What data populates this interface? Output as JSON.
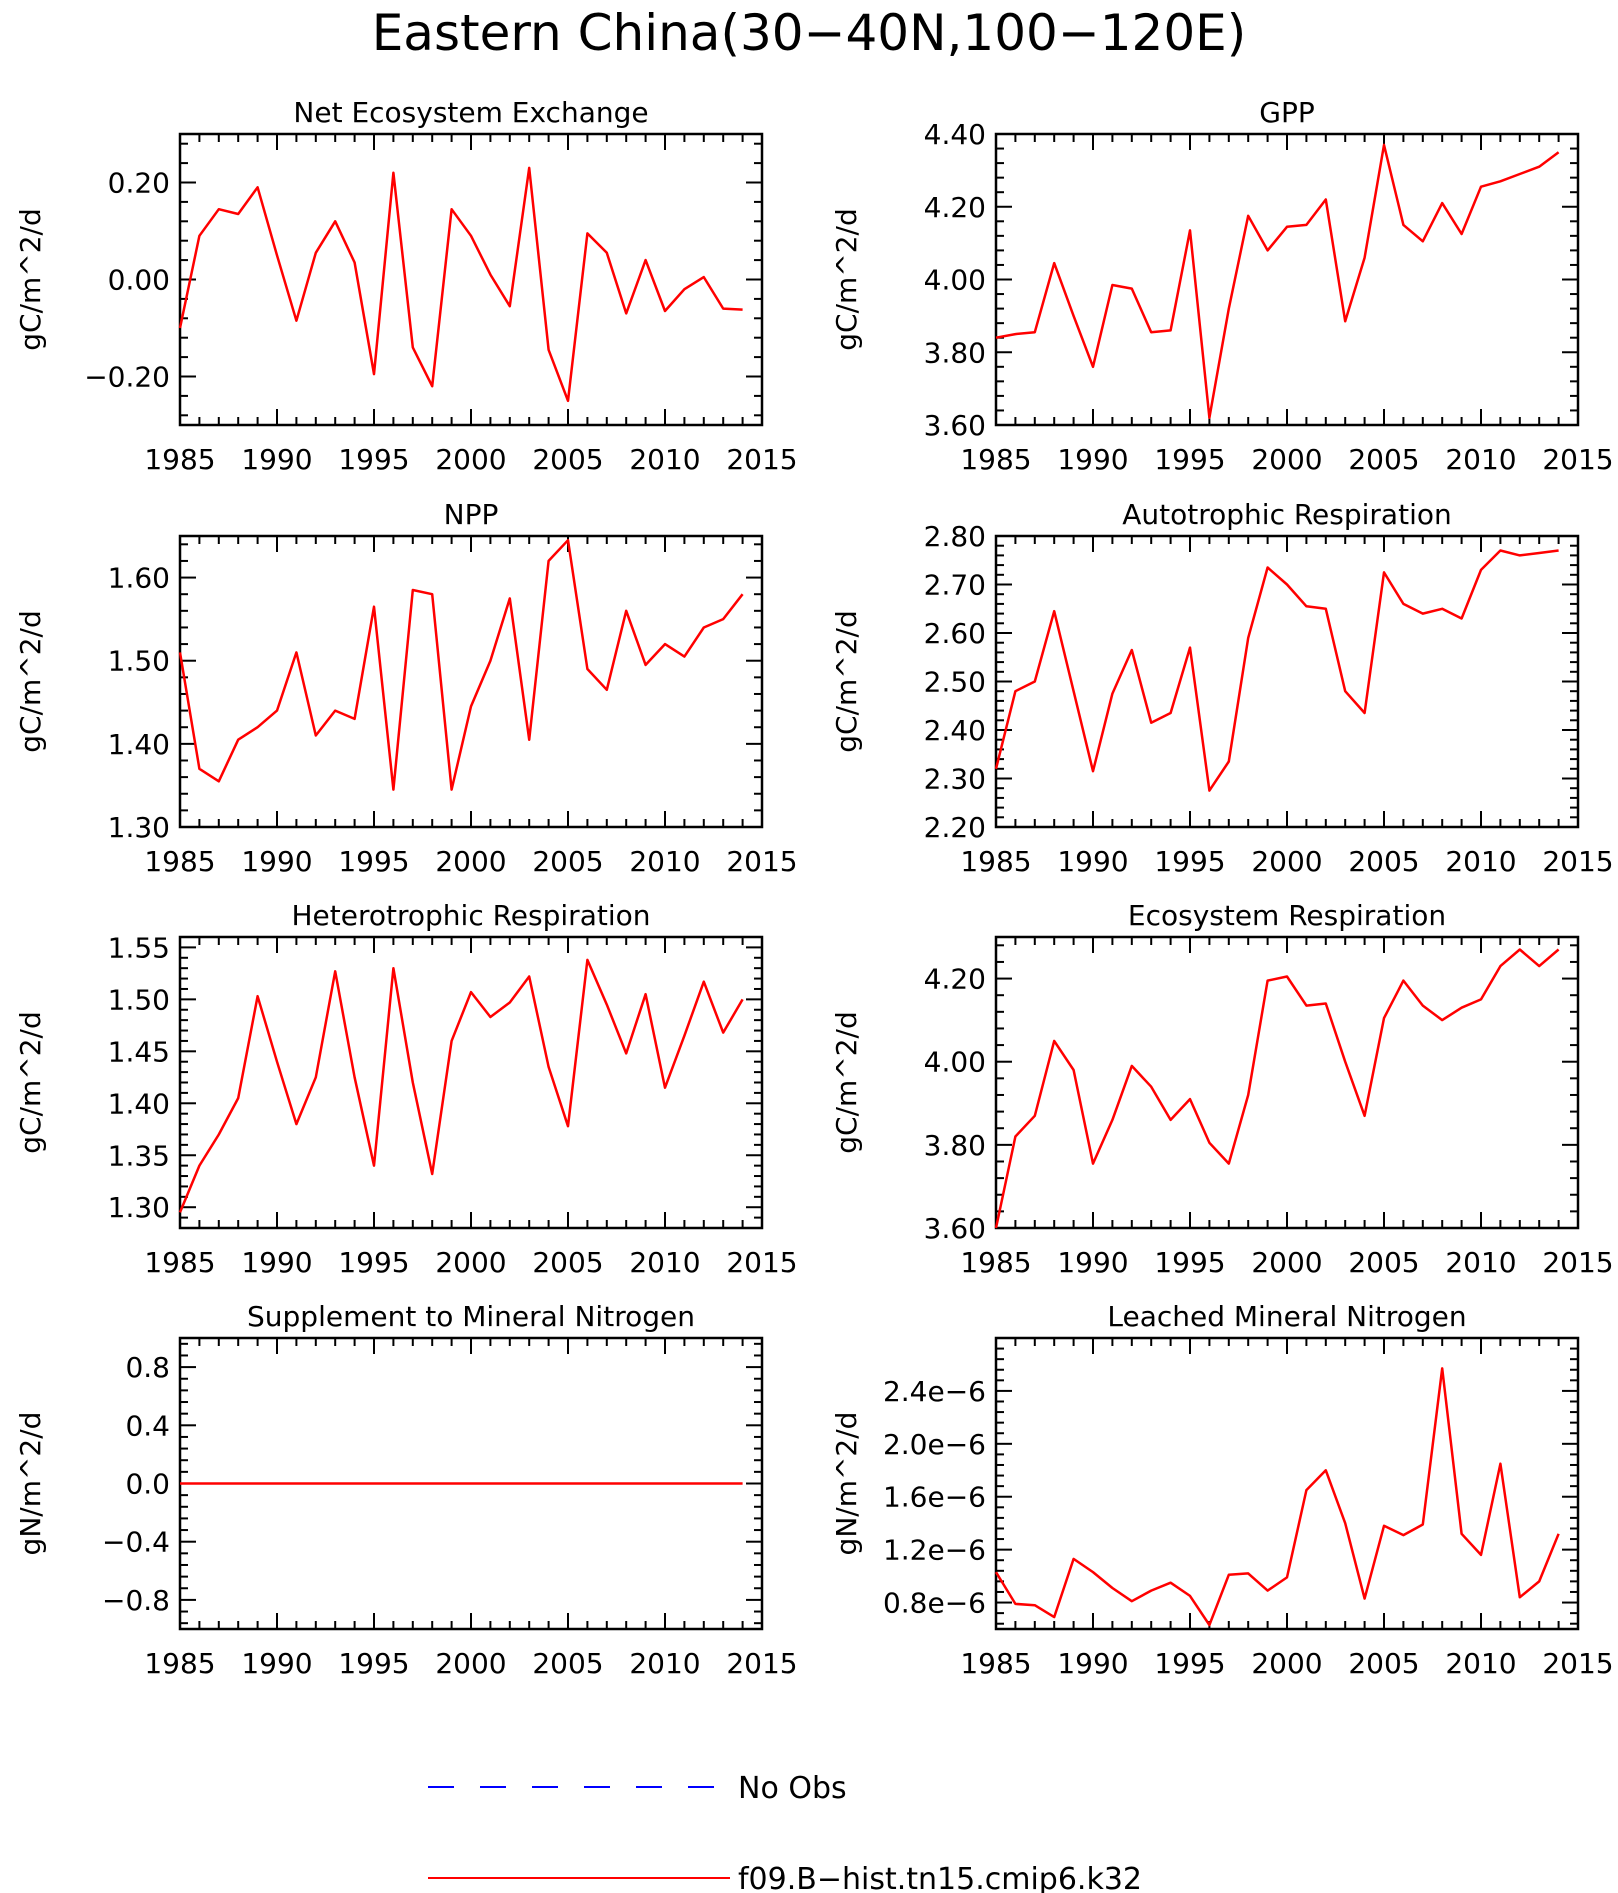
{
  "title": "Eastern China(30-40N,100-120E)",
  "legend": {
    "items": [
      {
        "label": "No Obs",
        "color": "#0000ff",
        "dash": "dashed"
      },
      {
        "label": "f09.B-hist.tn15.cmip6.k32",
        "color": "#ff0000",
        "dash": "solid"
      }
    ]
  },
  "colors": {
    "series": "#ff0000",
    "obs": "#0000ff",
    "axis": "#000000"
  },
  "chart_data": [
    {
      "type": "line",
      "title": "Net Ecosystem Exchange",
      "ylabel": "gC/m^2/d",
      "xlim": [
        1985,
        2015
      ],
      "ylim": [
        -0.3,
        0.3
      ],
      "xticks": [
        "1985",
        "1990",
        "1995",
        "2000",
        "2005",
        "2010",
        "2015"
      ],
      "yticks": [
        "-0.20",
        "0.00",
        "0.20"
      ],
      "ytick_values": [
        -0.2,
        0,
        0.2
      ],
      "x_start": 1985,
      "series": [
        {
          "values": [
            -0.1,
            0.09,
            0.145,
            0.135,
            0.19,
            0.05,
            -0.085,
            0.055,
            0.12,
            0.035,
            -0.195,
            0.22,
            -0.14,
            -0.22,
            0.145,
            0.09,
            0.01,
            -0.055,
            0.23,
            -0.145,
            -0.25,
            0.095,
            0.055,
            -0.07,
            0.04,
            -0.065,
            -0.02,
            0.005,
            -0.06,
            -0.062
          ]
        }
      ]
    },
    {
      "type": "line",
      "title": "GPP",
      "ylabel": "gC/m^2/d",
      "xlim": [
        1985,
        2015
      ],
      "ylim": [
        3.6,
        4.4
      ],
      "xticks": [
        "1985",
        "1990",
        "1995",
        "2000",
        "2005",
        "2010",
        "2015"
      ],
      "yticks": [
        "3.60",
        "3.80",
        "4.00",
        "4.20",
        "4.40"
      ],
      "ytick_values": [
        3.6,
        3.8,
        4.0,
        4.2,
        4.4
      ],
      "x_start": 1985,
      "series": [
        {
          "values": [
            3.84,
            3.85,
            3.855,
            4.045,
            3.9,
            3.76,
            3.985,
            3.975,
            3.855,
            3.86,
            4.135,
            3.62,
            3.92,
            4.175,
            4.08,
            4.145,
            4.15,
            4.22,
            3.885,
            4.06,
            4.37,
            4.15,
            4.105,
            4.21,
            4.125,
            4.255,
            4.27,
            4.29,
            4.31,
            4.35
          ]
        }
      ]
    },
    {
      "type": "line",
      "title": "NPP",
      "ylabel": "gC/m^2/d",
      "xlim": [
        1985,
        2015
      ],
      "ylim": [
        1.3,
        1.65
      ],
      "xticks": [
        "1985",
        "1990",
        "1995",
        "2000",
        "2005",
        "2010",
        "2015"
      ],
      "yticks": [
        "1.30",
        "1.40",
        "1.50",
        "1.60"
      ],
      "ytick_values": [
        1.3,
        1.4,
        1.5,
        1.6
      ],
      "x_start": 1985,
      "series": [
        {
          "values": [
            1.51,
            1.37,
            1.355,
            1.405,
            1.42,
            1.44,
            1.51,
            1.41,
            1.44,
            1.43,
            1.565,
            1.345,
            1.585,
            1.58,
            1.345,
            1.445,
            1.5,
            1.575,
            1.405,
            1.62,
            1.645,
            1.49,
            1.465,
            1.56,
            1.495,
            1.52,
            1.505,
            1.54,
            1.55,
            1.58
          ]
        }
      ]
    },
    {
      "type": "line",
      "title": "Autotrophic Respiration",
      "ylabel": "gC/m^2/d",
      "xlim": [
        1985,
        2015
      ],
      "ylim": [
        2.2,
        2.8
      ],
      "xticks": [
        "1985",
        "1990",
        "1995",
        "2000",
        "2005",
        "2010",
        "2015"
      ],
      "yticks": [
        "2.20",
        "2.30",
        "2.40",
        "2.50",
        "2.60",
        "2.70",
        "2.80"
      ],
      "ytick_values": [
        2.2,
        2.3,
        2.4,
        2.5,
        2.6,
        2.7,
        2.8
      ],
      "x_start": 1985,
      "series": [
        {
          "values": [
            2.32,
            2.48,
            2.5,
            2.645,
            2.48,
            2.315,
            2.475,
            2.565,
            2.415,
            2.435,
            2.57,
            2.275,
            2.335,
            2.59,
            2.735,
            2.7,
            2.655,
            2.65,
            2.48,
            2.435,
            2.725,
            2.66,
            2.64,
            2.65,
            2.63,
            2.73,
            2.77,
            2.76,
            2.765,
            2.77
          ]
        }
      ]
    },
    {
      "type": "line",
      "title": "Heterotrophic Respiration",
      "ylabel": "gC/m^2/d",
      "xlim": [
        1985,
        2015
      ],
      "ylim": [
        1.28,
        1.56
      ],
      "xticks": [
        "1985",
        "1990",
        "1995",
        "2000",
        "2005",
        "2010",
        "2015"
      ],
      "yticks": [
        "1.30",
        "1.35",
        "1.40",
        "1.45",
        "1.50",
        "1.55"
      ],
      "ytick_values": [
        1.3,
        1.35,
        1.4,
        1.45,
        1.5,
        1.55
      ],
      "x_start": 1985,
      "series": [
        {
          "values": [
            1.295,
            1.34,
            1.37,
            1.405,
            1.503,
            1.44,
            1.38,
            1.425,
            1.527,
            1.425,
            1.34,
            1.53,
            1.42,
            1.332,
            1.46,
            1.507,
            1.483,
            1.497,
            1.522,
            1.435,
            1.378,
            1.538,
            1.495,
            1.448,
            1.505,
            1.415,
            1.465,
            1.517,
            1.468,
            1.5
          ]
        }
      ]
    },
    {
      "type": "line",
      "title": "Ecosystem Respiration",
      "ylabel": "gC/m^2/d",
      "xlim": [
        1985,
        2015
      ],
      "ylim": [
        3.6,
        4.3
      ],
      "xticks": [
        "1985",
        "1990",
        "1995",
        "2000",
        "2005",
        "2010",
        "2015"
      ],
      "yticks": [
        "3.60",
        "3.80",
        "4.00",
        "4.20"
      ],
      "ytick_values": [
        3.6,
        3.8,
        4.0,
        4.2
      ],
      "x_start": 1985,
      "series": [
        {
          "values": [
            3.6,
            3.82,
            3.87,
            4.05,
            3.98,
            3.755,
            3.86,
            3.99,
            3.94,
            3.86,
            3.91,
            3.805,
            3.755,
            3.92,
            4.195,
            4.205,
            4.135,
            4.14,
            4.0,
            3.87,
            4.105,
            4.195,
            4.135,
            4.1,
            4.13,
            4.15,
            4.23,
            4.27,
            4.23,
            4.27
          ]
        }
      ]
    },
    {
      "type": "line",
      "title": "Supplement to Mineral Nitrogen",
      "ylabel": "gN/m^2/d",
      "xlim": [
        1985,
        2015
      ],
      "ylim": [
        -1.0,
        1.0
      ],
      "xticks": [
        "1985",
        "1990",
        "1995",
        "2000",
        "2005",
        "2010",
        "2015"
      ],
      "yticks": [
        "-0.8",
        "-0.4",
        "0.0",
        "0.4",
        "0.8"
      ],
      "ytick_values": [
        -0.8,
        -0.4,
        0,
        0.4,
        0.8
      ],
      "x_start": 1985,
      "series": [
        {
          "values": [
            0,
            0,
            0,
            0,
            0,
            0,
            0,
            0,
            0,
            0,
            0,
            0,
            0,
            0,
            0,
            0,
            0,
            0,
            0,
            0,
            0,
            0,
            0,
            0,
            0,
            0,
            0,
            0,
            0,
            0
          ]
        }
      ]
    },
    {
      "type": "line",
      "title": "Leached Mineral Nitrogen",
      "ylabel": "gN/m^2/d",
      "xlim": [
        1985,
        2015
      ],
      "ylim": [
        6e-07,
        2.8e-06
      ],
      "xticks": [
        "1985",
        "1990",
        "1995",
        "2000",
        "2005",
        "2010",
        "2015"
      ],
      "yticks": [
        "0.8e-6",
        "1.2e-6",
        "1.6e-6",
        "2.0e-6",
        "2.4e-6"
      ],
      "ytick_values": [
        8e-07,
        1.2e-06,
        1.6e-06,
        2e-06,
        2.4e-06
      ],
      "x_start": 1985,
      "series": [
        {
          "values": [
            1.03e-06,
            7.9e-07,
            7.8e-07,
            6.9e-07,
            1.13e-06,
            1.03e-06,
            9.1e-07,
            8.1e-07,
            8.9e-07,
            9.5e-07,
            8.5e-07,
            6.3e-07,
            1.01e-06,
            1.02e-06,
            8.9e-07,
            9.9e-07,
            1.65e-06,
            1.8e-06,
            1.4e-06,
            8.3e-07,
            1.38e-06,
            1.31e-06,
            1.39e-06,
            2.57e-06,
            1.32e-06,
            1.16e-06,
            1.85e-06,
            8.4e-07,
            9.6e-07,
            1.32e-06
          ]
        }
      ]
    }
  ]
}
